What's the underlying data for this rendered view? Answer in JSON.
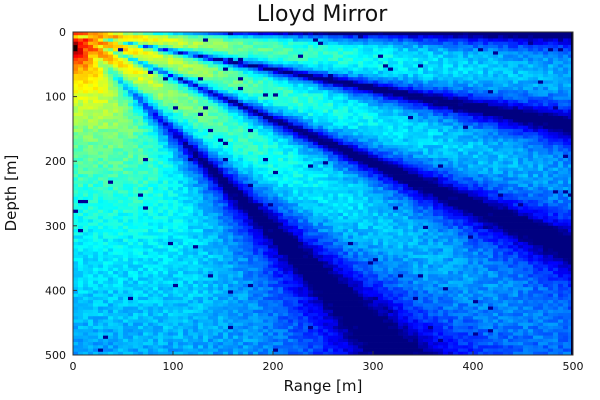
{
  "chart_data": {
    "type": "heatmap",
    "title": "Lloyd Mirror",
    "xlabel": "Range [m]",
    "ylabel": "Depth [m]",
    "xlim": [
      0,
      500
    ],
    "ylim": [
      0,
      500
    ],
    "y_inverted": true,
    "x_ticks": [
      0,
      100,
      200,
      300,
      400,
      500
    ],
    "y_ticks": [
      0,
      100,
      200,
      300,
      400,
      500
    ],
    "x_tick_labels": [
      "0",
      "100",
      "200",
      "300",
      "400",
      "500"
    ],
    "y_tick_labels": [
      "0",
      "100",
      "200",
      "300",
      "400",
      "500"
    ],
    "grid": true,
    "legend": "none",
    "colormap": "jet",
    "source": {
      "range": 0,
      "depth": 25
    },
    "resolution": {
      "nx": 100,
      "ny": 100
    }
  }
}
